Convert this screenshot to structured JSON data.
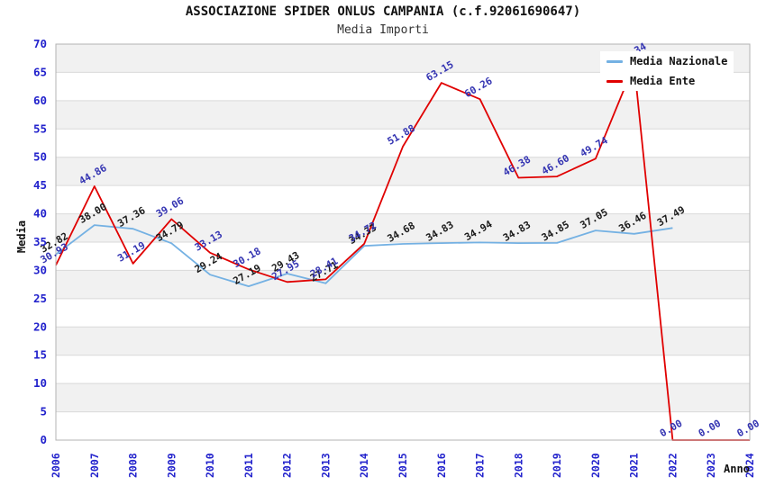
{
  "colors": {
    "background": "#ffffff",
    "band_fill": "#f1f1f1",
    "grid_line": "#d9d9d9",
    "plot_border": "#b3b3b3",
    "axis_tick_labels": "#2222cc"
  },
  "chart_data": {
    "type": "line",
    "title": "ASSOCIAZIONE SPIDER ONLUS CAMPANIA (c.f.92061690647)",
    "subtitle": "Media Importi",
    "xlabel": "Anno",
    "ylabel": "Media",
    "x": [
      2006,
      2007,
      2008,
      2009,
      2010,
      2011,
      2012,
      2013,
      2014,
      2015,
      2016,
      2017,
      2018,
      2019,
      2020,
      2021,
      2022,
      2023,
      2024
    ],
    "ylim": [
      0,
      70
    ],
    "ytick_step": 5,
    "grid": "horizontal lines with alternating shaded bands",
    "legend_position": "top-right",
    "point_labels": "each point labelled with value, rotated -30deg",
    "series": [
      {
        "name": "Media Nazionale",
        "color": "#74b1e3",
        "label_color": "#1a1a1a",
        "values": [
          32.82,
          38.0,
          37.36,
          34.79,
          29.24,
          27.19,
          29.43,
          27.71,
          34.33,
          34.68,
          34.83,
          34.94,
          34.83,
          34.85,
          37.05,
          36.46,
          37.49,
          null,
          null
        ]
      },
      {
        "name": "Media Ente",
        "color": "#e00000",
        "label_color": "#3434b2",
        "values": [
          30.93,
          44.86,
          31.19,
          39.06,
          33.13,
          30.18,
          27.95,
          28.41,
          34.72,
          51.88,
          63.15,
          60.26,
          46.38,
          46.6,
          49.74,
          66.34,
          0.0,
          0.0,
          0.0
        ]
      }
    ]
  }
}
